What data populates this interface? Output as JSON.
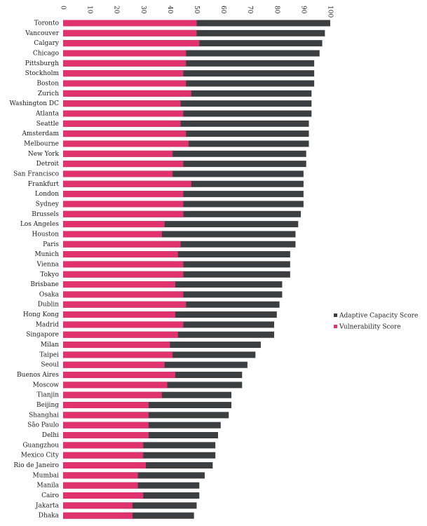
{
  "chart_data": {
    "type": "bar",
    "stacked": false,
    "orientation": "horizontal",
    "x_ticks": [
      "0",
      "10",
      "20",
      "30",
      "40",
      "50",
      "60",
      "70",
      "80",
      "90",
      "100"
    ],
    "xlim": [
      0,
      100
    ],
    "categories": [
      "Toronto",
      "Vancouver",
      "Calgary",
      "Chicago",
      "Pittsburgh",
      "Stockholm",
      "Boston",
      "Zurich",
      "Washington DC",
      "Atlanta",
      "Seattle",
      "Amsterdam",
      "Melbourne",
      "New York",
      "Detroit",
      "San Francisco",
      "Frankfurt",
      "London",
      "Sydney",
      "Brussels",
      "Los Angeles",
      "Houston",
      "Paris",
      "Munich",
      "Vienna",
      "Tokyo",
      "Brisbane",
      "Osaka",
      "Dublin",
      "Hong Kong",
      "Madrid",
      "Singapore",
      "Milan",
      "Taipei",
      "Seoul",
      "Buenos Aires",
      "Moscow",
      "Tianjin",
      "Beijing",
      "Shanghai",
      "São Paulo",
      "Delhi",
      "Guangzhou",
      "Mexico City",
      "Rio de Janeiro",
      "Mumbai",
      "Manila",
      "Cairo",
      "Jakarta",
      "Dhaka"
    ],
    "series": [
      {
        "name": "Adaptive Capacity Score",
        "color": "#3b3f42",
        "values": [
          100,
          98,
          97,
          96,
          94,
          94,
          94,
          93,
          93,
          93,
          92,
          92,
          92,
          91,
          91,
          90,
          90,
          90,
          90,
          89,
          88,
          87,
          87,
          85,
          85,
          85,
          82,
          82,
          81,
          80,
          79,
          79,
          74,
          72,
          69,
          67,
          67,
          63,
          63,
          62,
          59,
          58,
          57,
          57,
          56,
          53,
          51,
          51,
          50,
          49
        ]
      },
      {
        "name": "Vulnerability Score",
        "color": "#e0336e",
        "values": [
          50,
          50,
          51,
          46,
          46,
          45,
          46,
          48,
          44,
          45,
          44,
          46,
          47,
          41,
          45,
          41,
          48,
          45,
          45,
          45,
          38,
          37,
          44,
          43,
          45,
          45,
          42,
          45,
          46,
          42,
          45,
          43,
          40,
          41,
          38,
          42,
          39,
          37,
          32,
          32,
          32,
          32,
          30,
          30,
          31,
          28,
          28,
          30,
          26,
          26
        ]
      }
    ],
    "legend": {
      "position": "right",
      "items": [
        {
          "label": "Adaptive Capacity Score",
          "color": "#3b3f42"
        },
        {
          "label": "Vulnerability Score",
          "color": "#e0336e"
        }
      ]
    },
    "grid": false
  }
}
